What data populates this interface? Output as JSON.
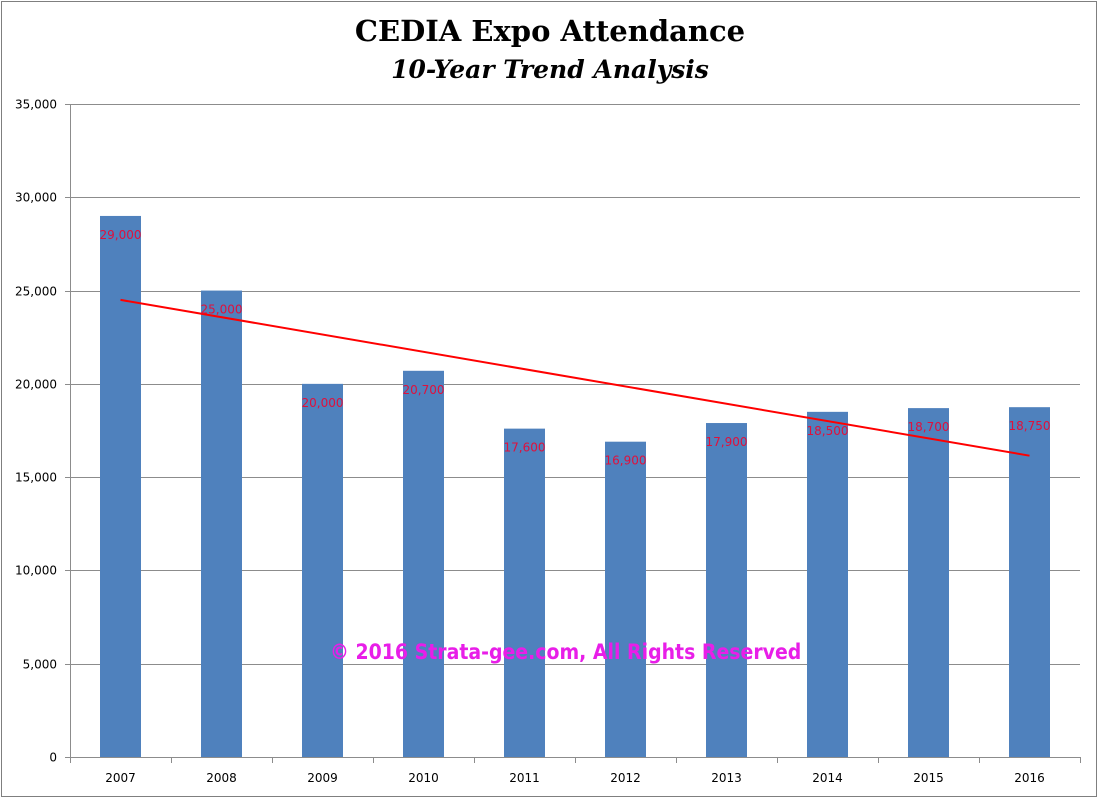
{
  "chart_data": {
    "type": "bar",
    "title": "CEDIA Expo Attendance",
    "subtitle": "10-Year Trend Analysis",
    "categories": [
      "2007",
      "2008",
      "2009",
      "2010",
      "2011",
      "2012",
      "2013",
      "2014",
      "2015",
      "2016"
    ],
    "series": [
      {
        "values": [
          29000,
          25000,
          20000,
          20700,
          17600,
          16900,
          17900,
          18500,
          18700,
          18750
        ],
        "data_labels": [
          "29,000",
          "25,000",
          "20,000",
          "20,700",
          "17,600",
          "16,900",
          "17,900",
          "18,500",
          "18,700",
          "18,750"
        ]
      }
    ],
    "trendline": {
      "type": "linear",
      "start": 24500,
      "end": 16150
    },
    "ylim": [
      0,
      35000
    ],
    "y_ticks": [
      0,
      5000,
      10000,
      15000,
      20000,
      25000,
      30000,
      35000
    ],
    "y_tick_labels": [
      "0",
      "5,000",
      "10,000",
      "15,000",
      "20,000",
      "25,000",
      "30,000",
      "35,000"
    ],
    "xlabel": "",
    "ylabel": "",
    "grid": true,
    "legend": "none",
    "colors": {
      "bar": "#4f81bd",
      "trendline": "#ff0000",
      "data_label": "#e0103c",
      "watermark": "#e81ee8"
    }
  },
  "watermark": "© 2016 Strata-gee.com, All Rights Reserved"
}
